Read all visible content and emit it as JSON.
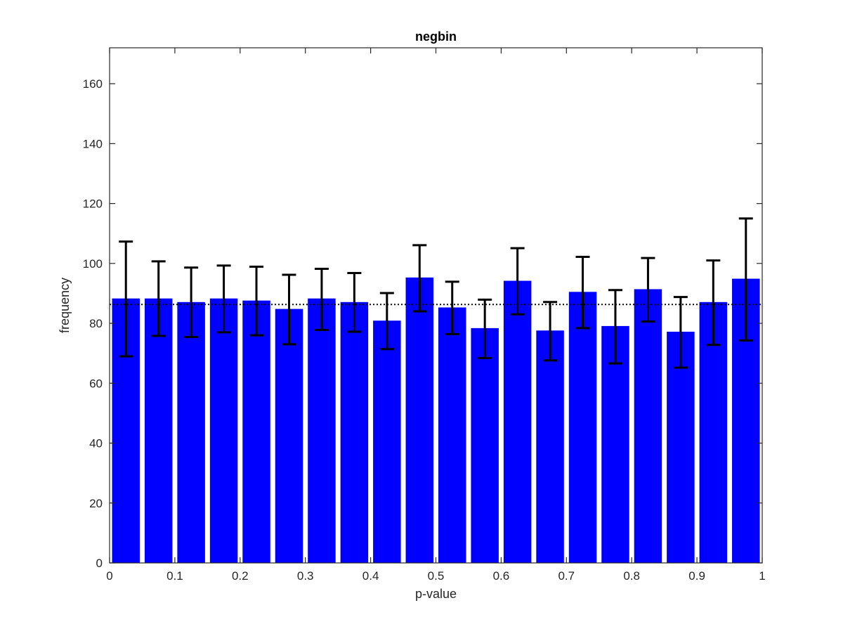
{
  "chart_data": {
    "type": "bar",
    "title": "negbin",
    "xlabel": "p-value",
    "ylabel": "frequency",
    "xlim": [
      0,
      1
    ],
    "ylim": [
      0,
      172
    ],
    "xticks": [
      0,
      0.1,
      0.2,
      0.3,
      0.4,
      0.5,
      0.6,
      0.7,
      0.8,
      0.9,
      1
    ],
    "xtick_labels": [
      "0",
      "0.1",
      "0.2",
      "0.3",
      "0.4",
      "0.5",
      "0.6",
      "0.7",
      "0.8",
      "0.9",
      "1"
    ],
    "yticks": [
      0,
      20,
      40,
      60,
      80,
      100,
      120,
      140,
      160
    ],
    "ytick_labels": [
      "0",
      "20",
      "40",
      "60",
      "80",
      "100",
      "120",
      "140",
      "160"
    ],
    "bin_centers": [
      0.025,
      0.075,
      0.125,
      0.175,
      0.225,
      0.275,
      0.325,
      0.375,
      0.425,
      0.475,
      0.525,
      0.575,
      0.625,
      0.675,
      0.725,
      0.775,
      0.825,
      0.875,
      0.925,
      0.975
    ],
    "values": [
      88.3,
      88.3,
      87.1,
      88.3,
      87.6,
      84.8,
      88.3,
      87.1,
      80.9,
      95.3,
      85.3,
      78.4,
      94.2,
      77.6,
      90.5,
      79.1,
      91.4,
      77.2,
      87.1,
      94.9
    ],
    "error_lower": [
      69.0,
      75.8,
      75.4,
      77.0,
      76.0,
      73.0,
      77.8,
      77.2,
      71.4,
      84.0,
      76.4,
      68.4,
      83.0,
      67.6,
      78.4,
      66.6,
      80.6,
      65.2,
      72.8,
      74.3
    ],
    "error_upper": [
      107.3,
      100.7,
      98.6,
      99.3,
      98.9,
      96.2,
      98.2,
      96.8,
      90.1,
      106.1,
      93.9,
      87.9,
      105.1,
      87.1,
      102.2,
      91.1,
      101.8,
      88.8,
      101.0,
      115.0
    ],
    "reference_line": 86.3,
    "grid": false,
    "colors": {
      "bar": "#0000ff",
      "error_bar": "#000000",
      "reference_line": "#000000",
      "axes": "#262626"
    }
  }
}
